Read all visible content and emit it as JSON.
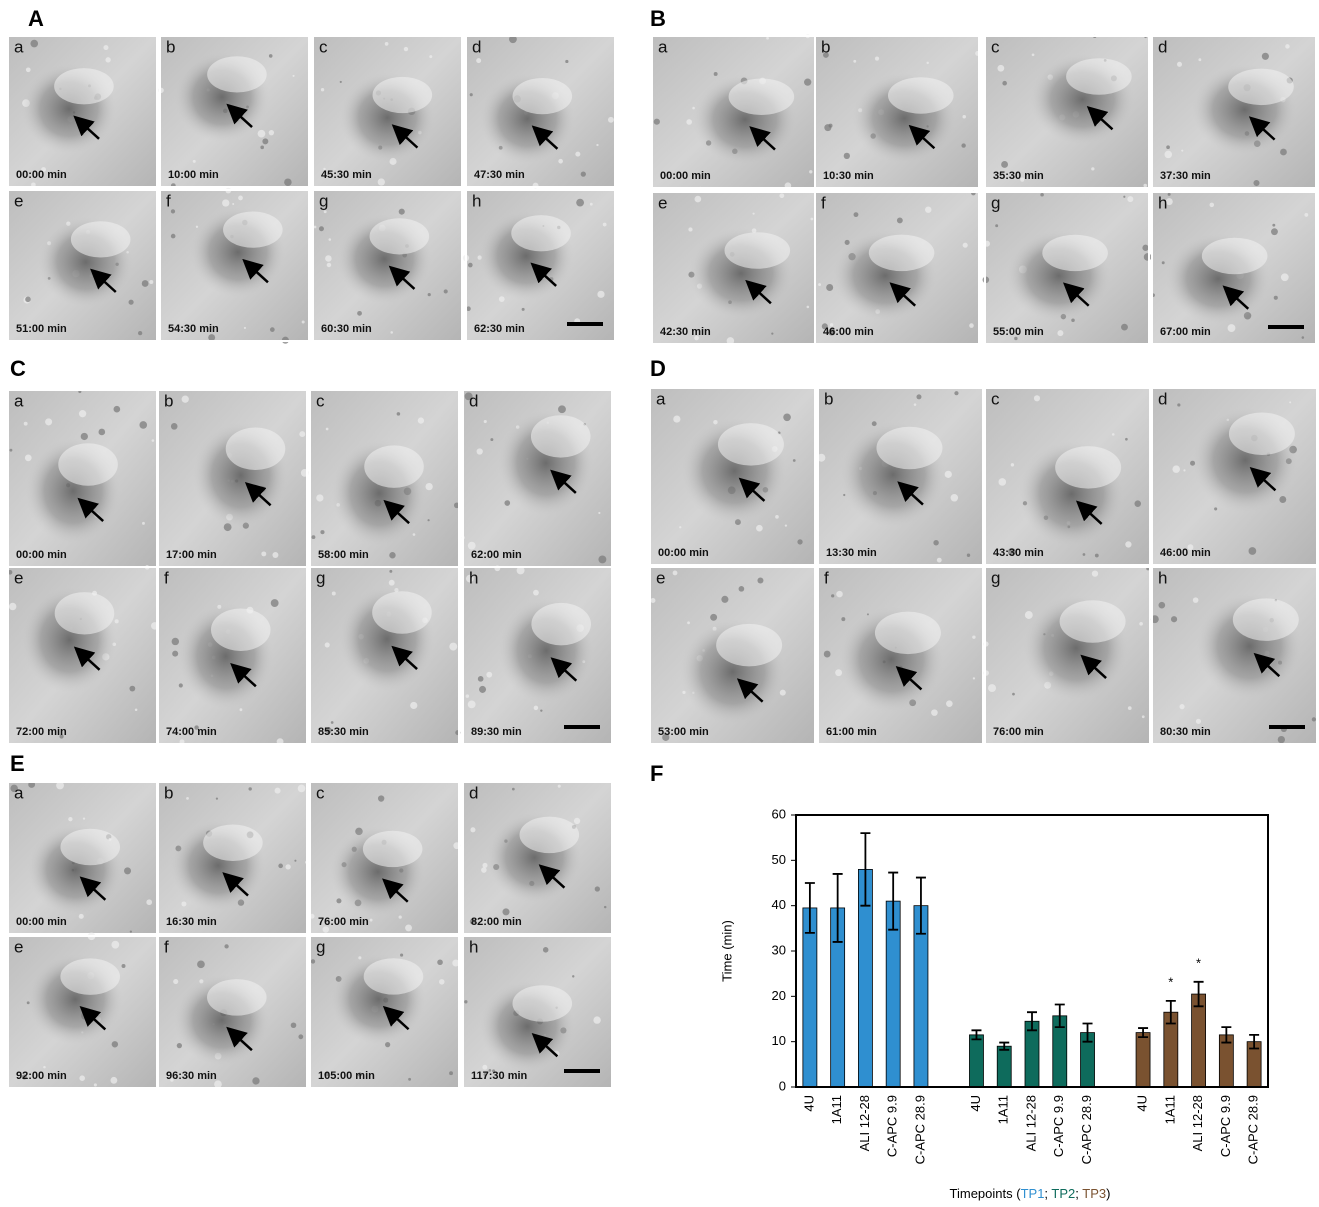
{
  "panels": [
    {
      "label": "A",
      "frames": [
        {
          "letter": "a",
          "time": "00:00 min"
        },
        {
          "letter": "b",
          "time": "10:00 min"
        },
        {
          "letter": "c",
          "time": "45:30 min"
        },
        {
          "letter": "d",
          "time": "47:30 min"
        },
        {
          "letter": "e",
          "time": "51:00 min"
        },
        {
          "letter": "f",
          "time": "54:30 min"
        },
        {
          "letter": "g",
          "time": "60:30 min"
        },
        {
          "letter": "h",
          "time": "62:30 min"
        }
      ]
    },
    {
      "label": "B",
      "frames": [
        {
          "letter": "a",
          "time": "00:00 min"
        },
        {
          "letter": "b",
          "time": "10:30 min"
        },
        {
          "letter": "c",
          "time": "35:30 min"
        },
        {
          "letter": "d",
          "time": "37:30 min"
        },
        {
          "letter": "e",
          "time": "42:30 min"
        },
        {
          "letter": "f",
          "time": "46:00 min"
        },
        {
          "letter": "g",
          "time": "55:00 min"
        },
        {
          "letter": "h",
          "time": "67:00 min"
        }
      ]
    },
    {
      "label": "C",
      "frames": [
        {
          "letter": "a",
          "time": "00:00 min"
        },
        {
          "letter": "b",
          "time": "17:00 min"
        },
        {
          "letter": "c",
          "time": "58:00 min"
        },
        {
          "letter": "d",
          "time": "62:00 min"
        },
        {
          "letter": "e",
          "time": "72:00 min"
        },
        {
          "letter": "f",
          "time": "74:00 min"
        },
        {
          "letter": "g",
          "time": "85:30 min"
        },
        {
          "letter": "h",
          "time": "89:30 min"
        }
      ]
    },
    {
      "label": "D",
      "frames": [
        {
          "letter": "a",
          "time": "00:00 min"
        },
        {
          "letter": "b",
          "time": "13:30 min"
        },
        {
          "letter": "c",
          "time": "43:30 min"
        },
        {
          "letter": "d",
          "time": "46:00 min"
        },
        {
          "letter": "e",
          "time": "53:00 min"
        },
        {
          "letter": "f",
          "time": "61:00 min"
        },
        {
          "letter": "g",
          "time": "76:00 min"
        },
        {
          "letter": "h",
          "time": "80:30 min"
        }
      ]
    },
    {
      "label": "E",
      "frames": [
        {
          "letter": "a",
          "time": "00:00 min"
        },
        {
          "letter": "b",
          "time": "16:30 min"
        },
        {
          "letter": "c",
          "time": "76:00 min"
        },
        {
          "letter": "d",
          "time": "82:00 min"
        },
        {
          "letter": "e",
          "time": "92:00 min"
        },
        {
          "letter": "f",
          "time": "96:30 min"
        },
        {
          "letter": "g",
          "time": "105:00 min"
        },
        {
          "letter": "h",
          "time": "117:30 min"
        }
      ]
    }
  ],
  "chart_data": {
    "type": "bar",
    "panel_label": "F",
    "categories": [
      "4U",
      "1A11",
      "ALI 12-28",
      "C-APC 9.9",
      "C-APC 28.9"
    ],
    "series": [
      {
        "name": "TP1",
        "color": "#2f8fd0",
        "values": [
          39.5,
          39.5,
          48,
          41,
          40
        ],
        "errors": [
          5.5,
          7.5,
          8,
          6.3,
          6.2
        ]
      },
      {
        "name": "TP2",
        "color": "#0e6b5c",
        "values": [
          11.5,
          9,
          14.5,
          15.7,
          12
        ],
        "errors": [
          1,
          0.8,
          2,
          2.5,
          2
        ]
      },
      {
        "name": "TP3",
        "color": "#7a5230",
        "values": [
          12,
          16.5,
          20.5,
          11.5,
          10
        ],
        "errors": [
          1,
          2.5,
          2.7,
          1.7,
          1.5
        ],
        "marks": [
          null,
          "*",
          "*",
          null,
          null
        ]
      }
    ],
    "ylabel": "Time (min)",
    "xlabel": "Timepoints (",
    "xlabel_separators": [
      "; ",
      "; ",
      ")"
    ],
    "ylim": [
      0,
      60
    ],
    "yticks": [
      0,
      10,
      20,
      30,
      40,
      50,
      60
    ]
  }
}
